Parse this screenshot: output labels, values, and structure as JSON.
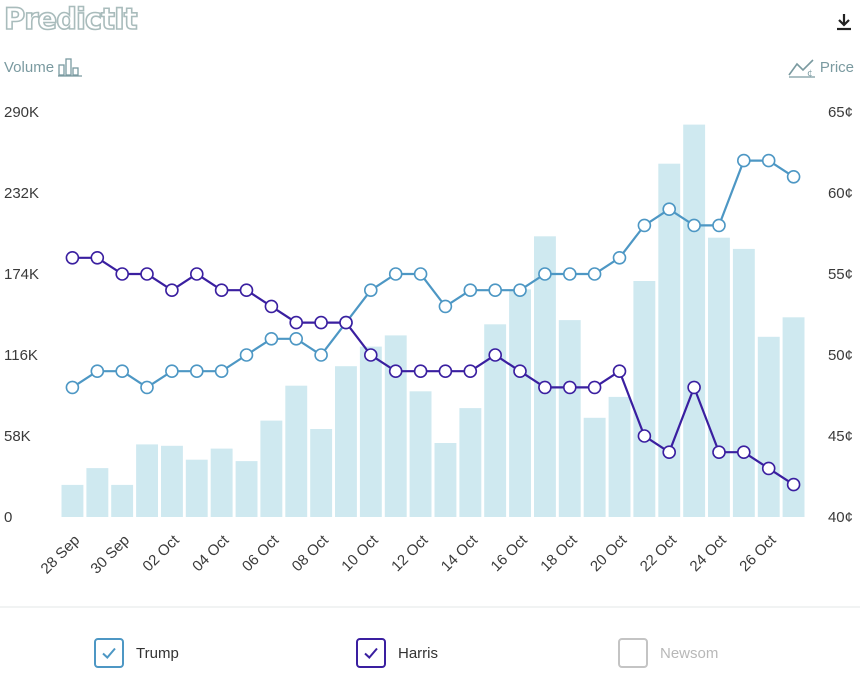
{
  "brand": {
    "name": "PredictIt"
  },
  "toolbar": {
    "download_icon": "download-icon"
  },
  "legend_top": {
    "volume_label": "Volume",
    "price_label": "Price"
  },
  "colors": {
    "bar": "#cfe9f0",
    "trump": "#4d97c4",
    "harris": "#3a1fa0",
    "newsom": "#c4c4c4",
    "axis_text": "#3a3a3a"
  },
  "chart_data": {
    "type": "bar+line",
    "categories": [
      "28 Sep",
      "29 Sep",
      "30 Sep",
      "01 Oct",
      "02 Oct",
      "03 Oct",
      "04 Oct",
      "05 Oct",
      "06 Oct",
      "07 Oct",
      "08 Oct",
      "09 Oct",
      "10 Oct",
      "11 Oct",
      "12 Oct",
      "13 Oct",
      "14 Oct",
      "15 Oct",
      "16 Oct",
      "17 Oct",
      "18 Oct",
      "19 Oct",
      "20 Oct",
      "21 Oct",
      "22 Oct",
      "23 Oct",
      "24 Oct",
      "25 Oct",
      "26 Oct",
      "27 Oct"
    ],
    "x_tick_labels": [
      "28 Sep",
      "30 Sep",
      "02 Oct",
      "04 Oct",
      "06 Oct",
      "08 Oct",
      "10 Oct",
      "12 Oct",
      "14 Oct",
      "16 Oct",
      "18 Oct",
      "20 Oct",
      "22 Oct",
      "24 Oct",
      "26 Oct"
    ],
    "volume": {
      "name": "Volume",
      "ylim": [
        0,
        290000
      ],
      "ticks": [
        "0",
        "58K",
        "116K",
        "174K",
        "232K",
        "290K"
      ],
      "values": [
        23000,
        35000,
        23000,
        52000,
        51000,
        41000,
        49000,
        40000,
        69000,
        94000,
        63000,
        108000,
        122000,
        130000,
        90000,
        53000,
        78000,
        138000,
        163000,
        201000,
        141000,
        71000,
        86000,
        169000,
        253000,
        281000,
        200000,
        192000,
        129000,
        143000
      ]
    },
    "price": {
      "name": "Price",
      "ylim": [
        40,
        65
      ],
      "ticks": [
        "40¢",
        "45¢",
        "50¢",
        "55¢",
        "60¢",
        "65¢"
      ],
      "series": [
        {
          "name": "Trump",
          "values": [
            48,
            49,
            49,
            48,
            49,
            49,
            49,
            50,
            51,
            51,
            50,
            52,
            54,
            55,
            55,
            53,
            54,
            54,
            54,
            55,
            55,
            55,
            56,
            58,
            59,
            58,
            58,
            62,
            62,
            61
          ]
        },
        {
          "name": "Harris",
          "values": [
            56,
            56,
            55,
            55,
            54,
            55,
            54,
            54,
            53,
            52,
            52,
            52,
            50,
            49,
            49,
            49,
            49,
            50,
            49,
            48,
            48,
            48,
            49,
            45,
            44,
            48,
            44,
            44,
            43,
            42
          ]
        }
      ]
    }
  },
  "legend_bottom": [
    {
      "label": "Trump",
      "checked": true,
      "color": "#4d97c4",
      "text_color": "#333333"
    },
    {
      "label": "Harris",
      "checked": true,
      "color": "#3a1fa0",
      "text_color": "#333333"
    },
    {
      "label": "Newsom",
      "checked": false,
      "color": "#c4c4c4",
      "text_color": "#b8b8b8"
    }
  ]
}
